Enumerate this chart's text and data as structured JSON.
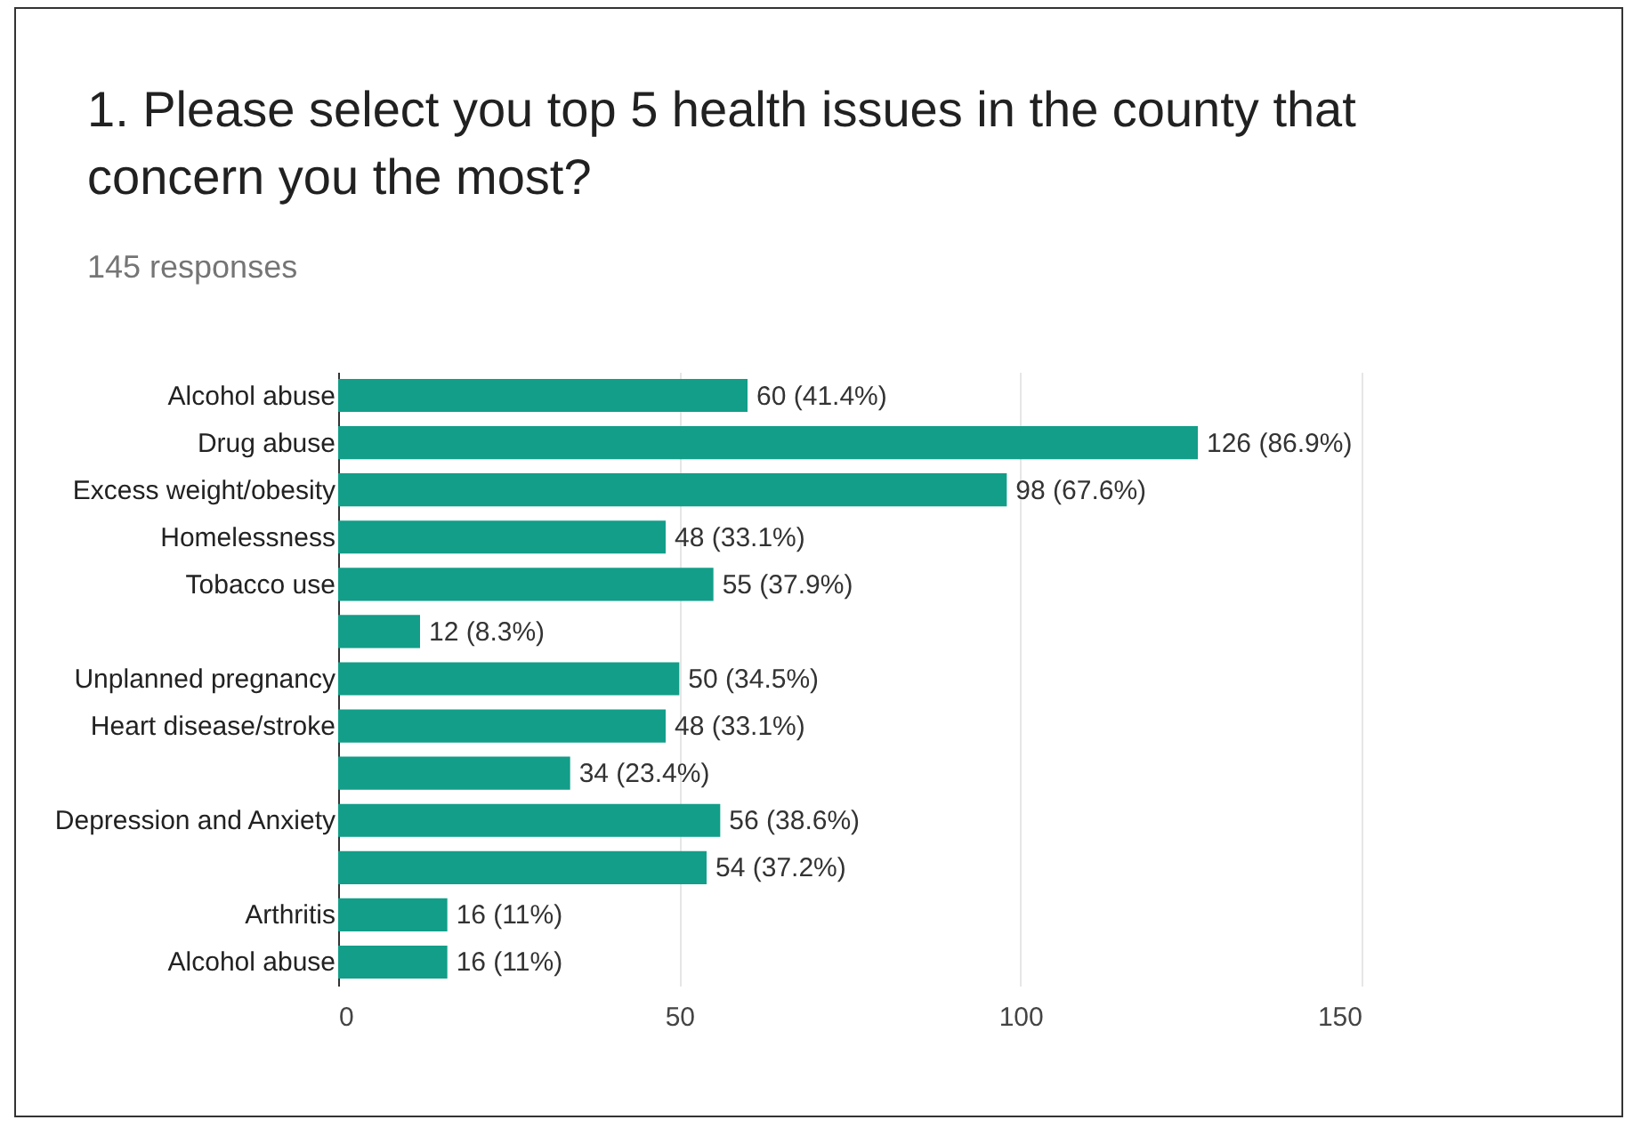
{
  "chart_data": {
    "type": "bar",
    "orientation": "horizontal",
    "title": "1. Please select you top 5 health issues in the county that concern you the most?",
    "subtitle": "145 responses",
    "categories": [
      "Alcohol abuse",
      "Drug abuse",
      "Excess weight/obesity",
      "Homelessness",
      "Tobacco use",
      null,
      "Unplanned pregnancy",
      "Heart disease/stroke",
      null,
      "Depression and Anxiety",
      null,
      "Arthritis",
      "Alcohol abuse"
    ],
    "values": [
      60,
      126,
      98,
      48,
      55,
      12,
      50,
      48,
      34,
      56,
      54,
      16,
      16
    ],
    "value_labels": [
      "60 (41.4%)",
      "126 (86.9%)",
      "98 (67.6%)",
      "48 (33.1%)",
      "55 (37.9%)",
      "12 (8.3%)",
      "50 (34.5%)",
      "48 (33.1%)",
      "34 (23.4%)",
      "56 (38.6%)",
      "54 (37.2%)",
      "16 (11%)",
      "16 (11%)"
    ],
    "color": "#129e89",
    "xlim": [
      0,
      150
    ],
    "xticks": [
      0,
      50,
      100,
      150
    ],
    "grid": "x"
  }
}
